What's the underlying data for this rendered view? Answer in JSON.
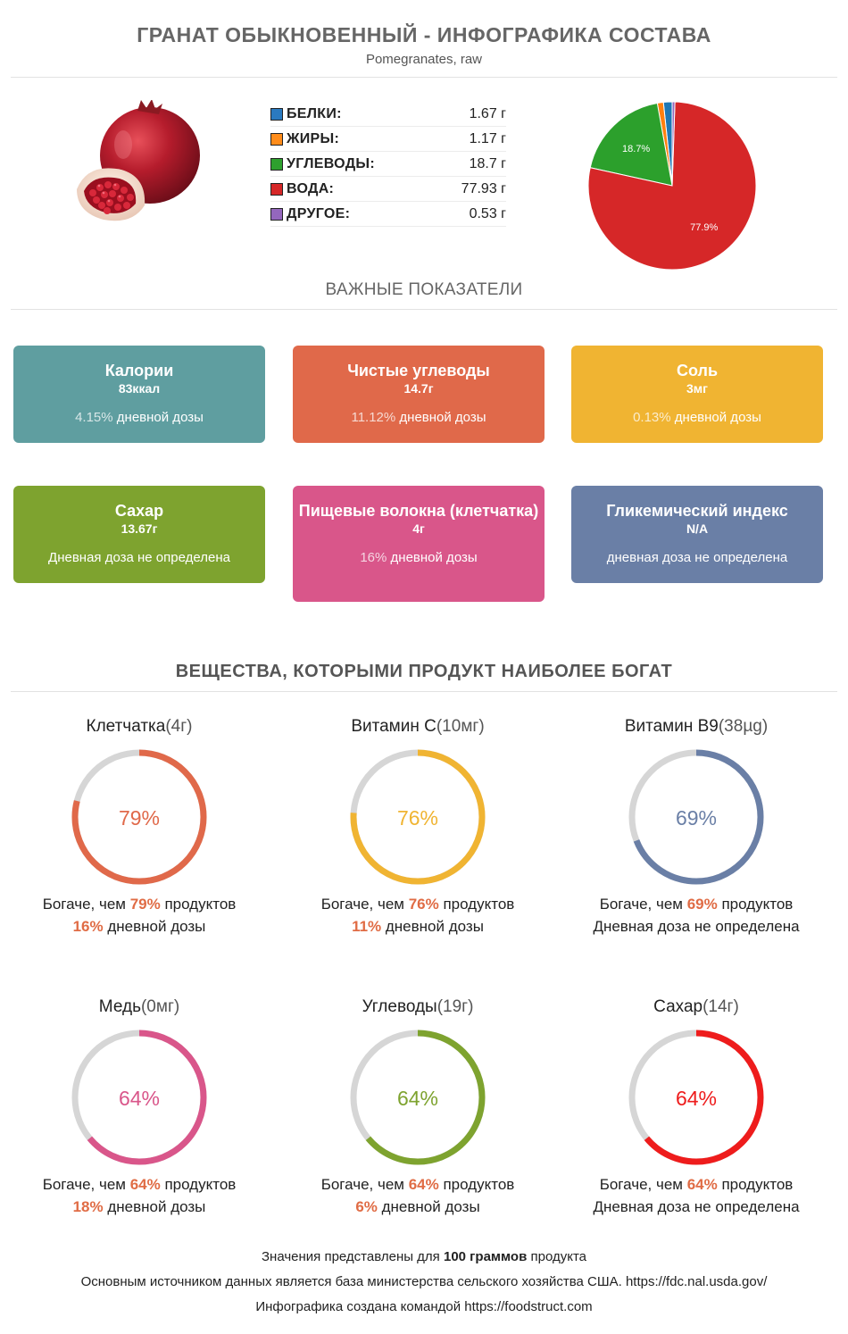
{
  "header": {
    "title": "ГРАНАТ ОБЫКНОВЕННЫЙ - ИНФОГРАФИКА СОСТАВА",
    "subtitle": "Pomegranates, raw"
  },
  "composition": [
    {
      "name": "БЕЛКИ:",
      "value": "1.67 г",
      "color": "#2a7ac0"
    },
    {
      "name": "ЖИРЫ:",
      "value": "1.17 г",
      "color": "#ff8c1a"
    },
    {
      "name": "УГЛЕВОДЫ:",
      "value": "18.7 г",
      "color": "#2ea02e"
    },
    {
      "name": "ВОДА:",
      "value": "77.93 г",
      "color": "#d62728"
    },
    {
      "name": "ДРУГОЕ:",
      "value": "0.53 г",
      "color": "#9467bd"
    }
  ],
  "chart_data": {
    "type": "pie",
    "categories": [
      "Белки",
      "Жиры",
      "Углеводы",
      "Вода",
      "Другое"
    ],
    "values": [
      1.67,
      1.17,
      18.7,
      77.93,
      0.53
    ],
    "colors": [
      "#1f77b4",
      "#ff7f0e",
      "#2ca02c",
      "#d62728",
      "#9467bd"
    ],
    "data_labels": [
      "",
      "",
      "18.7%",
      "77.9%",
      ""
    ]
  },
  "section_important": "ВАЖНЫЕ ПОКАЗАТЕЛИ",
  "cards": [
    {
      "title": "Калории",
      "value": "83ккал",
      "pct": "4.15%",
      "note": " дневной дозы",
      "color": "#5f9ea0"
    },
    {
      "title": "Чистые углеводы",
      "value": "14.7г",
      "pct": "11.12%",
      "note": " дневной дозы",
      "color": "#e0694a"
    },
    {
      "title": "Соль",
      "value": "3мг",
      "pct": "0.13%",
      "note": " дневной дозы",
      "color": "#f0b432"
    },
    {
      "title": "Сахар",
      "value": "13.67г",
      "pct": "",
      "note": "Дневная доза не определена",
      "color": "#7ea32f"
    },
    {
      "title": "Пищевые волокна (клетчатка)",
      "value": "4г",
      "pct": "16%",
      "note": " дневной дозы",
      "color": "#d9568a"
    },
    {
      "title": "Гликемический индекс",
      "value": "N/A",
      "pct": "",
      "note": "дневная доза не определена",
      "color": "#6a7fa6"
    }
  ],
  "section_rich": "ВЕЩЕСТВА, КОТОРЫМИ ПРОДУКТ НАИБОЛЕЕ БОГАТ",
  "nutrients": [
    {
      "name": "Клетчатка",
      "amount": "(4г)",
      "percent": 79,
      "percent_label": "79%",
      "color": "#e0694a",
      "rich_prefix": "Богаче, чем ",
      "rich_pct": "79%",
      "rich_suffix": " продуктов",
      "daily_pct": "16%",
      "daily_suffix": " дневной дозы",
      "daily_text": ""
    },
    {
      "name": "Витамин C",
      "amount": "(10мг)",
      "percent": 76,
      "percent_label": "76%",
      "color": "#f0b432",
      "rich_prefix": "Богаче, чем ",
      "rich_pct": "76%",
      "rich_suffix": " продуктов",
      "daily_pct": "11%",
      "daily_suffix": " дневной дозы",
      "daily_text": ""
    },
    {
      "name": "Витамин B9",
      "amount": "(38µg)",
      "percent": 69,
      "percent_label": "69%",
      "color": "#6a7fa6",
      "rich_prefix": "Богаче, чем ",
      "rich_pct": "69%",
      "rich_suffix": " продуктов",
      "daily_pct": "",
      "daily_suffix": "",
      "daily_text": "Дневная доза не определена"
    },
    {
      "name": "Медь",
      "amount": "(0мг)",
      "percent": 64,
      "percent_label": "64%",
      "color": "#d9568a",
      "rich_prefix": "Богаче, чем ",
      "rich_pct": "64%",
      "rich_suffix": " продуктов",
      "daily_pct": "18%",
      "daily_suffix": " дневной дозы",
      "daily_text": ""
    },
    {
      "name": "Углеводы",
      "amount": "(19г)",
      "percent": 64,
      "percent_label": "64%",
      "color": "#7ea32f",
      "rich_prefix": "Богаче, чем ",
      "rich_pct": "64%",
      "rich_suffix": " продуктов",
      "daily_pct": "6%",
      "daily_suffix": " дневной дозы",
      "daily_text": ""
    },
    {
      "name": "Сахар",
      "amount": "(14г)",
      "percent": 64,
      "percent_label": "64%",
      "color": "#ee1c1c",
      "rich_prefix": "Богаче, чем ",
      "rich_pct": "64%",
      "rich_suffix": " продуктов",
      "daily_pct": "",
      "daily_suffix": "",
      "daily_text": "Дневная доза не определена"
    }
  ],
  "footer": {
    "line1_prefix": "Значения представлены для ",
    "line1_bold": "100 граммов",
    "line1_suffix": " продукта",
    "line2": "Основным источником данных является база министерства сельского хозяйства США. https://fdc.nal.usda.gov/",
    "line3": "Инфографика создана командой https://foodstruct.com"
  }
}
